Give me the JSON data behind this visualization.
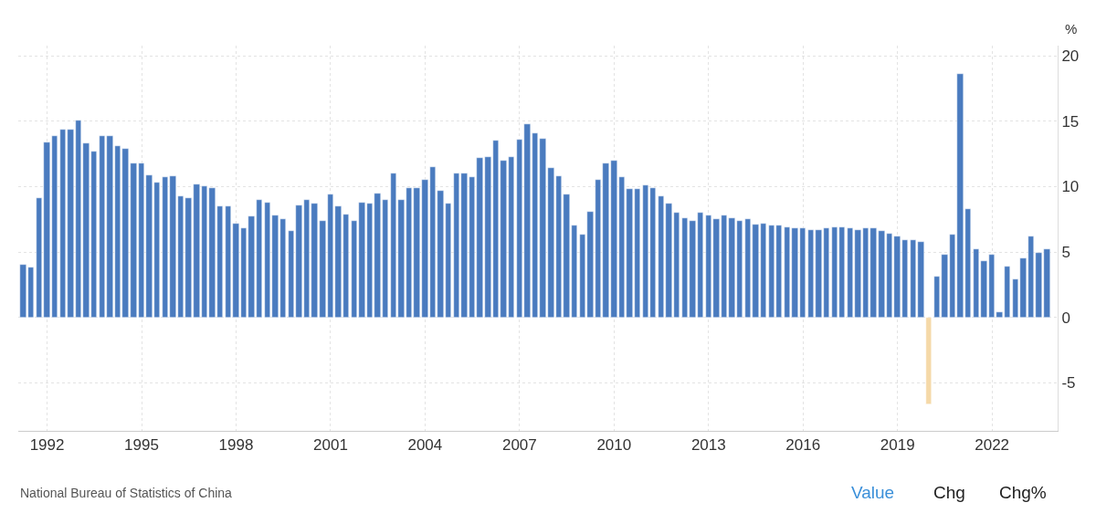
{
  "chart_data": {
    "type": "bar",
    "ylabel": "%",
    "annotations": [
      "National Bureau of Statistics of China",
      "Value",
      "Chg",
      "Chg%"
    ],
    "x": [
      "1991-04",
      "1991-07",
      "1991-10",
      "1992-01",
      "1992-04",
      "1992-07",
      "1992-10",
      "1993-01",
      "1993-04",
      "1993-07",
      "1993-10",
      "1994-01",
      "1994-04",
      "1994-07",
      "1994-10",
      "1995-01",
      "1995-04",
      "1995-07",
      "1995-10",
      "1996-01",
      "1996-04",
      "1996-07",
      "1996-10",
      "1997-01",
      "1997-04",
      "1997-07",
      "1997-10",
      "1998-01",
      "1998-04",
      "1998-07",
      "1998-10",
      "1999-01",
      "1999-04",
      "1999-07",
      "1999-10",
      "2000-01",
      "2000-04",
      "2000-07",
      "2000-10",
      "2001-01",
      "2001-04",
      "2001-07",
      "2001-10",
      "2002-01",
      "2002-04",
      "2002-07",
      "2002-10",
      "2003-01",
      "2003-04",
      "2003-07",
      "2003-10",
      "2004-01",
      "2004-04",
      "2004-07",
      "2004-10",
      "2005-01",
      "2005-04",
      "2005-07",
      "2005-10",
      "2006-01",
      "2006-04",
      "2006-07",
      "2006-10",
      "2007-01",
      "2007-04",
      "2007-07",
      "2007-10",
      "2008-01",
      "2008-04",
      "2008-07",
      "2008-10",
      "2009-01",
      "2009-04",
      "2009-07",
      "2009-10",
      "2010-01",
      "2010-04",
      "2010-07",
      "2010-10",
      "2011-01",
      "2011-04",
      "2011-07",
      "2011-10",
      "2012-01",
      "2012-04",
      "2012-07",
      "2012-10",
      "2013-01",
      "2013-04",
      "2013-07",
      "2013-10",
      "2014-01",
      "2014-04",
      "2014-07",
      "2014-10",
      "2015-01",
      "2015-04",
      "2015-07",
      "2015-10",
      "2016-01",
      "2016-04",
      "2016-07",
      "2016-10",
      "2017-01",
      "2017-04",
      "2017-07",
      "2017-10",
      "2018-01",
      "2018-04",
      "2018-07",
      "2018-10",
      "2019-01",
      "2019-04",
      "2019-07",
      "2019-10",
      "2020-01",
      "2020-04",
      "2020-07",
      "2020-10",
      "2021-01",
      "2021-04",
      "2021-07",
      "2021-10",
      "2022-01",
      "2022-04",
      "2022-07",
      "2022-10",
      "2023-01",
      "2023-04",
      "2023-07",
      "2023-10"
    ],
    "values": [
      4.0,
      3.8,
      9.1,
      13.4,
      13.9,
      14.4,
      14.4,
      15.1,
      13.3,
      12.7,
      13.9,
      13.9,
      13.1,
      12.9,
      11.8,
      11.8,
      10.9,
      10.3,
      10.7,
      10.8,
      9.3,
      9.1,
      10.2,
      10.0,
      9.9,
      8.5,
      8.5,
      7.2,
      6.8,
      7.7,
      9.0,
      8.8,
      7.8,
      7.5,
      6.6,
      8.6,
      9.0,
      8.7,
      7.4,
      9.4,
      8.5,
      7.9,
      7.4,
      8.8,
      8.7,
      9.5,
      9.0,
      11.0,
      9.0,
      9.9,
      9.9,
      10.5,
      11.5,
      9.7,
      8.7,
      11.0,
      11.0,
      10.7,
      12.2,
      12.3,
      13.5,
      12.0,
      12.3,
      13.6,
      14.8,
      14.1,
      13.7,
      11.4,
      10.8,
      9.4,
      7.0,
      6.3,
      8.1,
      10.5,
      11.8,
      12.0,
      10.7,
      9.8,
      9.8,
      10.1,
      9.9,
      9.3,
      8.7,
      8.0,
      7.6,
      7.4,
      8.0,
      7.8,
      7.5,
      7.8,
      7.6,
      7.4,
      7.5,
      7.1,
      7.2,
      7.0,
      7.0,
      6.9,
      6.8,
      6.8,
      6.7,
      6.7,
      6.8,
      6.9,
      6.9,
      6.8,
      6.7,
      6.8,
      6.8,
      6.6,
      6.4,
      6.2,
      5.9,
      5.9,
      5.8,
      -6.7,
      3.1,
      4.8,
      6.3,
      18.6,
      8.3,
      5.2,
      4.3,
      4.8,
      0.4,
      3.9,
      2.9,
      4.5,
      6.2,
      4.9,
      5.2
    ],
    "colors": [
      "#4a7bbf",
      "#4a7bbf",
      "#4a7bbf",
      "#4a7bbf",
      "#4a7bbf",
      "#4a7bbf",
      "#4a7bbf",
      "#4a7bbf",
      "#4a7bbf",
      "#4a7bbf",
      "#4a7bbf",
      "#4a7bbf",
      "#4a7bbf",
      "#4a7bbf",
      "#4a7bbf",
      "#4a7bbf",
      "#4a7bbf",
      "#4a7bbf",
      "#4a7bbf",
      "#4a7bbf",
      "#4a7bbf",
      "#4a7bbf",
      "#4a7bbf",
      "#4a7bbf",
      "#4a7bbf",
      "#4a7bbf",
      "#4a7bbf",
      "#4a7bbf",
      "#4a7bbf",
      "#4a7bbf",
      "#4a7bbf",
      "#4a7bbf",
      "#4a7bbf",
      "#4a7bbf",
      "#4a7bbf",
      "#4a7bbf",
      "#4a7bbf",
      "#4a7bbf",
      "#4a7bbf",
      "#4a7bbf",
      "#4a7bbf",
      "#4a7bbf",
      "#4a7bbf",
      "#4a7bbf",
      "#4a7bbf",
      "#4a7bbf",
      "#4a7bbf",
      "#4a7bbf",
      "#4a7bbf",
      "#4a7bbf",
      "#4a7bbf",
      "#4a7bbf",
      "#4a7bbf",
      "#4a7bbf",
      "#4a7bbf",
      "#4a7bbf",
      "#4a7bbf",
      "#4a7bbf",
      "#4a7bbf",
      "#4a7bbf",
      "#4a7bbf",
      "#4a7bbf",
      "#4a7bbf",
      "#4a7bbf",
      "#4a7bbf",
      "#4a7bbf",
      "#4a7bbf",
      "#4a7bbf",
      "#4a7bbf",
      "#4a7bbf",
      "#4a7bbf",
      "#4a7bbf",
      "#4a7bbf",
      "#4a7bbf",
      "#4a7bbf",
      "#4a7bbf",
      "#4a7bbf",
      "#4a7bbf",
      "#4a7bbf",
      "#4a7bbf",
      "#4a7bbf",
      "#4a7bbf",
      "#4a7bbf",
      "#4a7bbf",
      "#4a7bbf",
      "#4a7bbf",
      "#4a7bbf",
      "#4a7bbf",
      "#4a7bbf",
      "#4a7bbf",
      "#4a7bbf",
      "#4a7bbf",
      "#4a7bbf",
      "#4a7bbf",
      "#4a7bbf",
      "#4a7bbf",
      "#4a7bbf",
      "#4a7bbf",
      "#4a7bbf",
      "#4a7bbf",
      "#4a7bbf",
      "#4a7bbf",
      "#4a7bbf",
      "#4a7bbf",
      "#4a7bbf",
      "#4a7bbf",
      "#4a7bbf",
      "#4a7bbf",
      "#4a7bbf",
      "#4a7bbf",
      "#4a7bbf",
      "#4a7bbf",
      "#4a7bbf",
      "#4a7bbf",
      "#4a7bbf",
      "#f5d9a8",
      "#4a7bbf",
      "#4a7bbf",
      "#4a7bbf",
      "#4a7bbf",
      "#4a7bbf",
      "#4a7bbf",
      "#4a7bbf",
      "#4a7bbf",
      "#4a7bbf",
      "#4a7bbf",
      "#4a7bbf",
      "#4a7bbf",
      "#4a7bbf",
      "#4a7bbf",
      "#4a7bbf"
    ],
    "xlim": [
      "1991-02",
      "2024-02"
    ],
    "xticks": [
      "1992",
      "1995",
      "1998",
      "2001",
      "2004",
      "2007",
      "2010",
      "2013",
      "2016",
      "2019",
      "2022"
    ],
    "ylim": [
      -8.7,
      20.8
    ],
    "yticks": [
      -5,
      0,
      5,
      10,
      15,
      20
    ],
    "grid": true
  }
}
